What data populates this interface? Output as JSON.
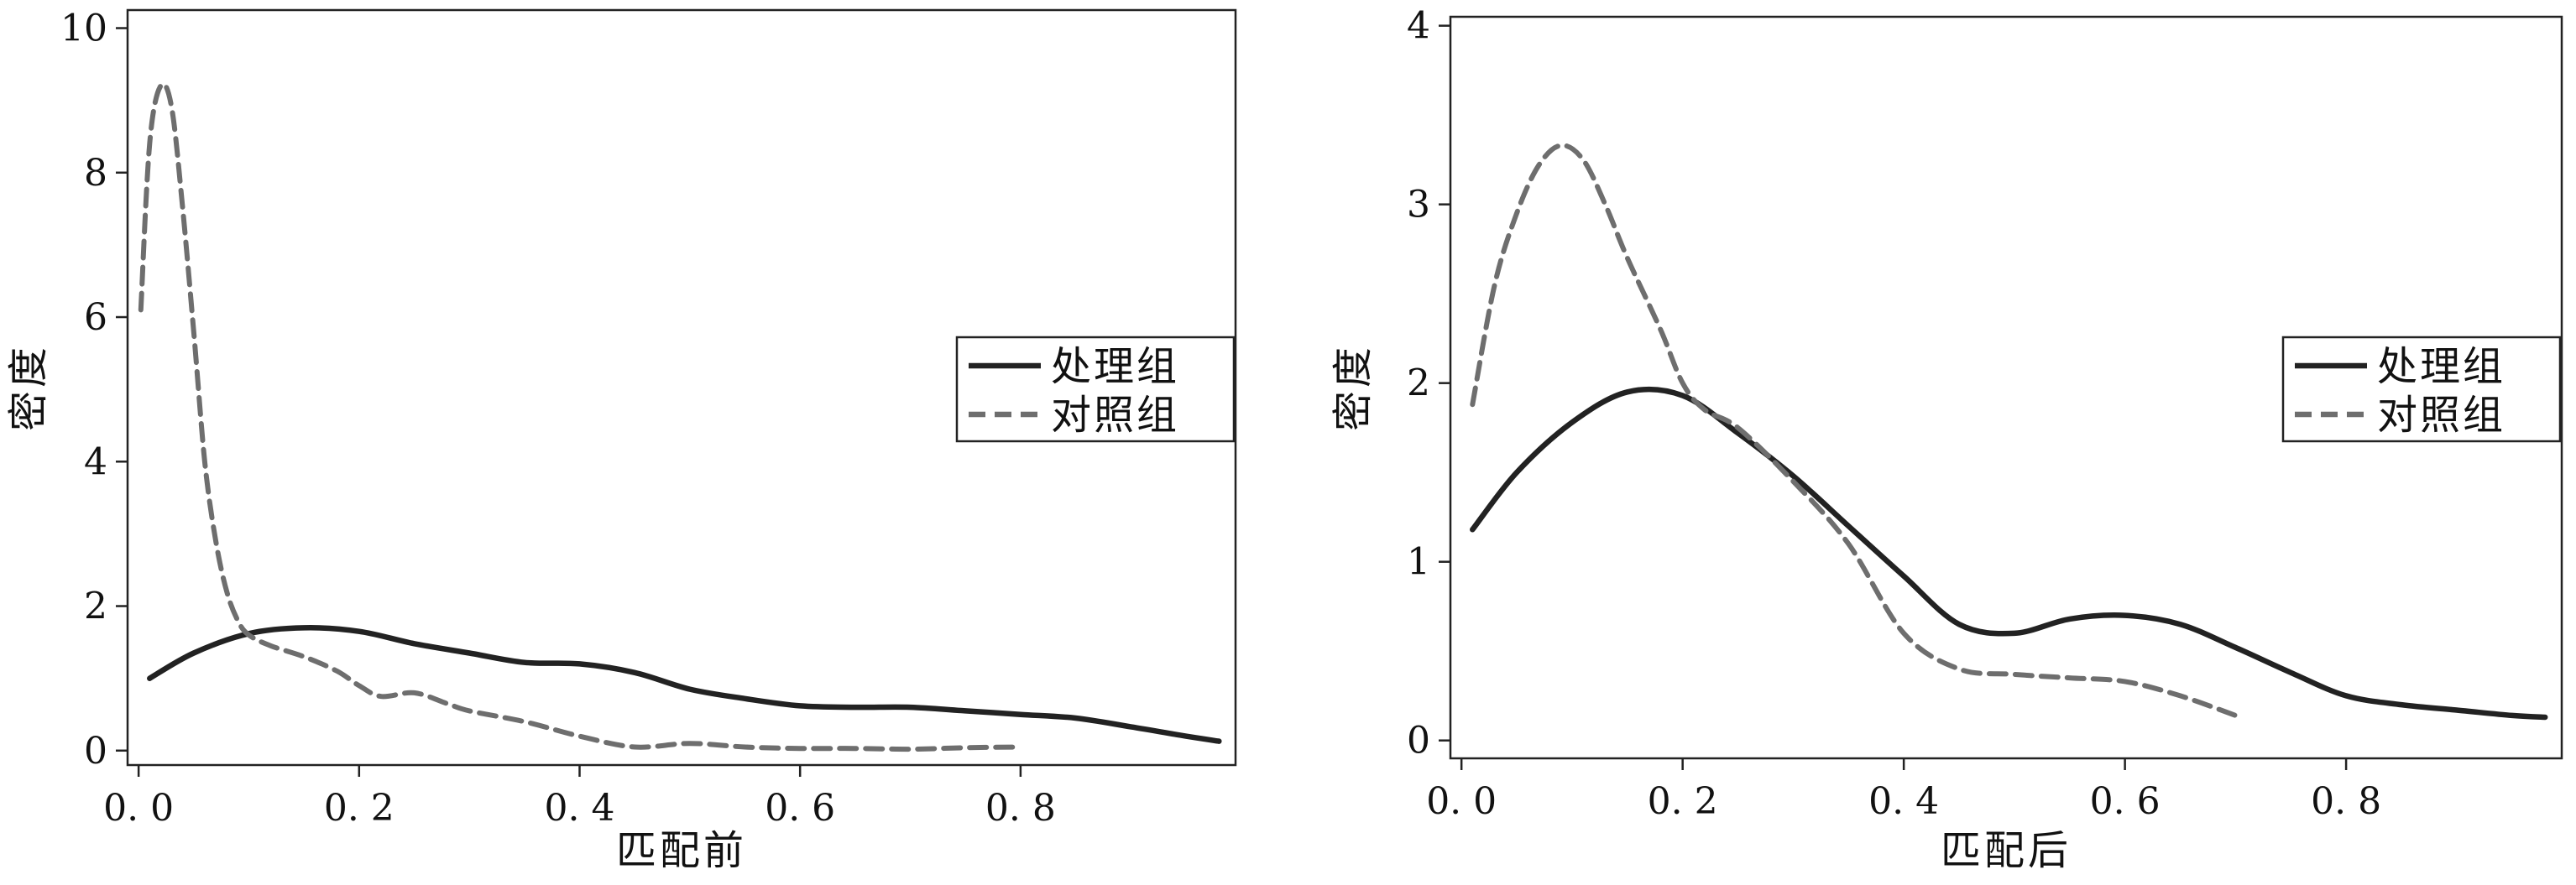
{
  "chart_data": [
    {
      "type": "line",
      "title": "",
      "xlabel": "匹配前",
      "ylabel": "密度",
      "xlim": [
        -0.01,
        0.995
      ],
      "ylim": [
        -0.2,
        10.25
      ],
      "x_ticks": [
        0.0,
        0.2,
        0.4,
        0.6,
        0.8
      ],
      "x_tick_labels": [
        "0. 0",
        "0. 2",
        "0. 4",
        "0. 6",
        "0. 8"
      ],
      "y_ticks": [
        0,
        2,
        4,
        6,
        8,
        10
      ],
      "y_tick_labels": [
        "0",
        "2",
        "4",
        "6",
        "8",
        "10"
      ],
      "grid": false,
      "legend_position": "right",
      "series": [
        {
          "name": "处理组",
          "style": "solid",
          "color": "#222222",
          "x": [
            0.01,
            0.05,
            0.1,
            0.15,
            0.2,
            0.25,
            0.3,
            0.35,
            0.4,
            0.45,
            0.5,
            0.55,
            0.6,
            0.65,
            0.7,
            0.75,
            0.8,
            0.85,
            0.9,
            0.95,
            0.98
          ],
          "y": [
            1.0,
            1.35,
            1.62,
            1.7,
            1.65,
            1.48,
            1.35,
            1.22,
            1.2,
            1.08,
            0.85,
            0.72,
            0.62,
            0.6,
            0.6,
            0.55,
            0.5,
            0.45,
            0.33,
            0.2,
            0.13
          ]
        },
        {
          "name": "对照组",
          "style": "dashed",
          "color": "#6e6e6e",
          "x": [
            0.002,
            0.01,
            0.02,
            0.03,
            0.04,
            0.05,
            0.06,
            0.07,
            0.08,
            0.09,
            0.1,
            0.12,
            0.15,
            0.18,
            0.2,
            0.22,
            0.25,
            0.28,
            0.3,
            0.35,
            0.4,
            0.45,
            0.5,
            0.55,
            0.6,
            0.65,
            0.7,
            0.75,
            0.8
          ],
          "y": [
            6.1,
            8.4,
            9.2,
            8.9,
            7.5,
            5.8,
            4.0,
            2.9,
            2.2,
            1.8,
            1.6,
            1.45,
            1.3,
            1.1,
            0.9,
            0.75,
            0.8,
            0.65,
            0.55,
            0.4,
            0.2,
            0.05,
            0.1,
            0.05,
            0.03,
            0.03,
            0.02,
            0.04,
            0.05
          ]
        }
      ]
    },
    {
      "type": "line",
      "title": "",
      "xlabel": "匹配后",
      "ylabel": "密度",
      "xlim": [
        -0.01,
        0.995
      ],
      "ylim": [
        -0.1,
        4.05
      ],
      "x_ticks": [
        0.0,
        0.2,
        0.4,
        0.6,
        0.8
      ],
      "x_tick_labels": [
        "0. 0",
        "0. 2",
        "0. 4",
        "0. 6",
        "0. 8"
      ],
      "y_ticks": [
        0,
        1,
        2,
        3,
        4
      ],
      "y_tick_labels": [
        "0",
        "1",
        "2",
        "3",
        "4"
      ],
      "grid": false,
      "legend_position": "right",
      "series": [
        {
          "name": "处理组",
          "style": "solid",
          "color": "#222222",
          "x": [
            0.01,
            0.05,
            0.1,
            0.15,
            0.2,
            0.25,
            0.3,
            0.35,
            0.4,
            0.45,
            0.5,
            0.55,
            0.6,
            0.65,
            0.7,
            0.75,
            0.8,
            0.85,
            0.9,
            0.95,
            0.98
          ],
          "y": [
            1.18,
            1.5,
            1.78,
            1.95,
            1.93,
            1.72,
            1.48,
            1.2,
            0.92,
            0.65,
            0.6,
            0.68,
            0.7,
            0.65,
            0.52,
            0.38,
            0.25,
            0.2,
            0.17,
            0.14,
            0.13
          ]
        },
        {
          "name": "对照组",
          "style": "dashed",
          "color": "#6e6e6e",
          "x": [
            0.01,
            0.03,
            0.05,
            0.07,
            0.09,
            0.11,
            0.13,
            0.15,
            0.18,
            0.2,
            0.22,
            0.25,
            0.3,
            0.35,
            0.4,
            0.45,
            0.5,
            0.55,
            0.6,
            0.65,
            0.7
          ],
          "y": [
            1.88,
            2.55,
            2.95,
            3.22,
            3.33,
            3.25,
            3.0,
            2.7,
            2.3,
            2.0,
            1.85,
            1.75,
            1.45,
            1.1,
            0.6,
            0.4,
            0.37,
            0.35,
            0.33,
            0.25,
            0.14
          ]
        }
      ]
    }
  ]
}
